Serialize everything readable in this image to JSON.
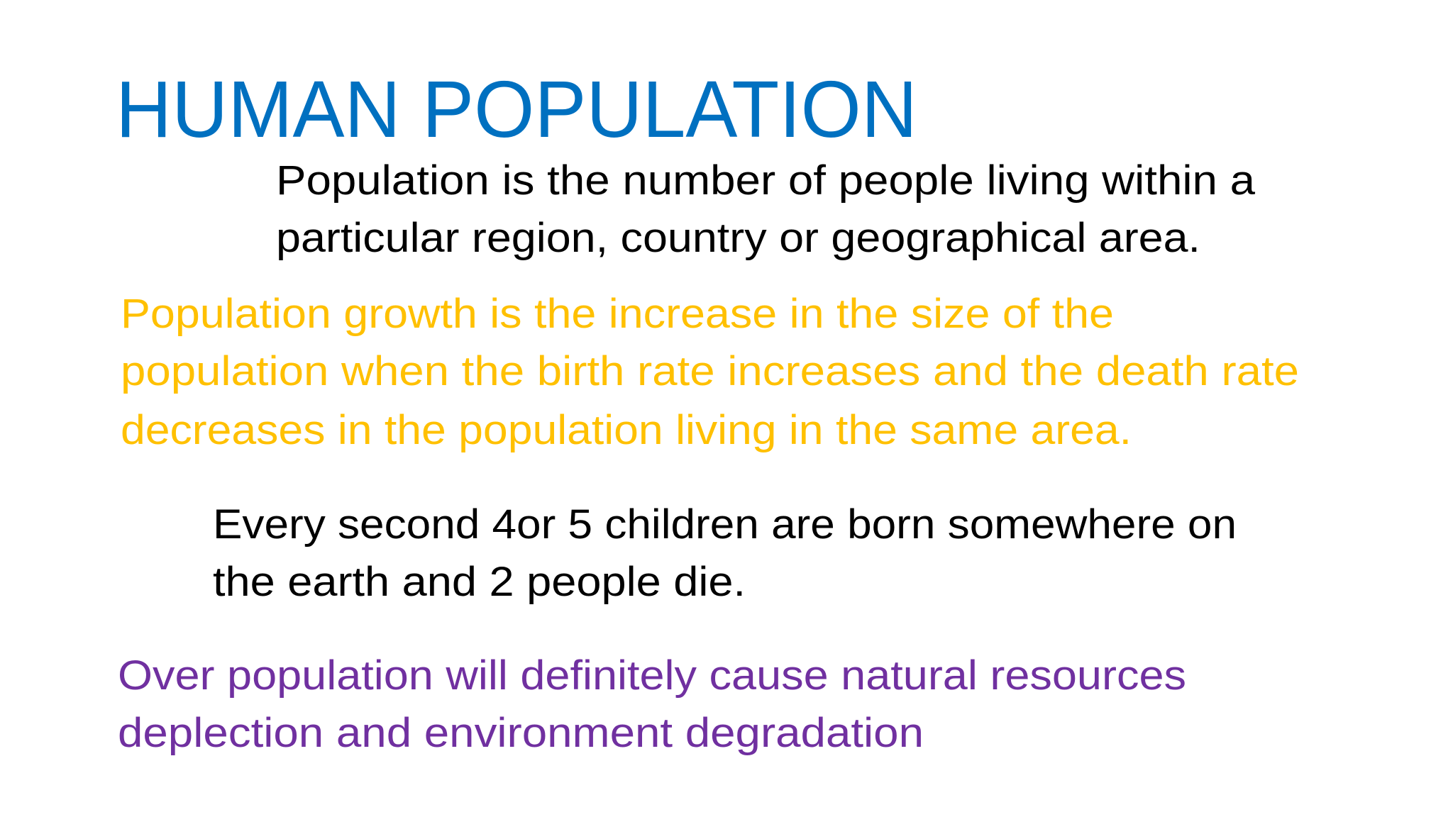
{
  "title": "HUMAN POPULATION",
  "paragraphs": [
    {
      "lines": [
        "Population is the number of people living within a",
        "particular region, country or geographical area."
      ]
    },
    {
      "lines": [
        "Population growth is the increase in the size of the",
        "population when the birth rate increases and the death rate",
        "decreases in the population living in the same area."
      ]
    },
    {
      "lines": [
        "Every second 4or 5 children are born somewhere on",
        "the earth and 2 people die."
      ]
    },
    {
      "lines": [
        "Over population will definitely cause natural resources",
        "deplection and environment degradation"
      ]
    }
  ]
}
